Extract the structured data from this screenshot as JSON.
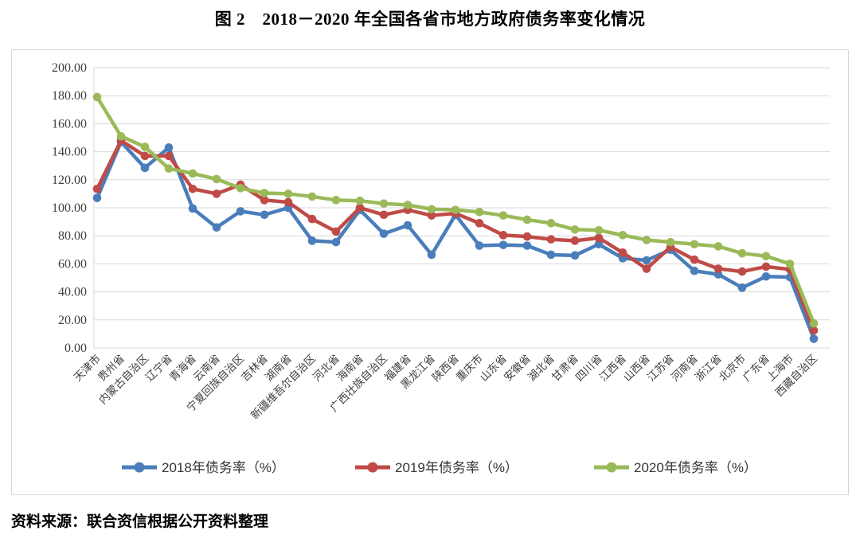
{
  "page": {
    "title": "图 2　2018－2020 年全国各省市地方政府债务率变化情况",
    "source_note": "资料来源：联合资信根据公开资料整理"
  },
  "colors": {
    "series_2018": "#4a7ebb",
    "series_2019": "#bf4b47",
    "series_2020": "#9aba59",
    "gridline": "#d9d9d9",
    "frame_border": "#d6d6d6",
    "axis_text": "#404040"
  },
  "chart_data": {
    "type": "line",
    "title": "图 2　2018－2020 年全国各省市地方政府债务率变化情况",
    "categories": [
      "天津市",
      "贵州省",
      "内蒙古自治区",
      "辽宁省",
      "青海省",
      "云南省",
      "宁夏回族自治区",
      "吉林省",
      "湖南省",
      "新疆维吾尔自治区",
      "河北省",
      "海南省",
      "广西壮族自治区",
      "福建省",
      "黑龙江省",
      "陕西省",
      "重庆市",
      "山东省",
      "安徽省",
      "湖北省",
      "甘肃省",
      "四川省",
      "江西省",
      "山西省",
      "江苏省",
      "河南省",
      "浙江省",
      "北京市",
      "广东省",
      "上海市",
      "西藏自治区"
    ],
    "series": [
      {
        "year": "2018",
        "name": "2018年债务率（%）",
        "color_key": "series_2018",
        "values": [
          107,
          147,
          128.5,
          143,
          99.5,
          86,
          97.5,
          95,
          100,
          76.5,
          75.5,
          98.5,
          81.5,
          87.5,
          66.5,
          95,
          73,
          73.5,
          73,
          66.5,
          66,
          74,
          64,
          62.5,
          70,
          55,
          52.5,
          43,
          51,
          50.5,
          6.5
        ]
      },
      {
        "year": "2019",
        "name": "2019年债务率（%）",
        "color_key": "series_2019",
        "values": [
          113.5,
          148,
          137,
          137,
          113.5,
          110,
          116.5,
          105.5,
          104,
          92,
          83,
          100,
          95,
          98.5,
          94.5,
          96,
          89,
          80.5,
          79.5,
          77.5,
          76.5,
          78.5,
          68,
          56.5,
          72,
          63,
          56.5,
          54.5,
          58,
          56,
          12.5
        ]
      },
      {
        "year": "2020",
        "name": "2020年债务率（%）",
        "color_key": "series_2020",
        "values": [
          179,
          151,
          143.5,
          128,
          124.5,
          120.5,
          114,
          110.5,
          110,
          108,
          105.5,
          105,
          103,
          102,
          99,
          98.5,
          97,
          94.5,
          91.5,
          89,
          84.5,
          84,
          80.5,
          77,
          75.5,
          74,
          72.5,
          67.5,
          65.5,
          60,
          17.5
        ]
      }
    ],
    "y_axis": {
      "min": 0,
      "max": 200,
      "step": 20,
      "tick_labels": [
        "0.00",
        "20.00",
        "40.00",
        "60.00",
        "80.00",
        "100.00",
        "120.00",
        "140.00",
        "160.00",
        "180.00",
        "200.00"
      ]
    },
    "x_axis": {
      "label_rotation_deg": -45
    },
    "grid": true,
    "legend_position": "bottom"
  }
}
